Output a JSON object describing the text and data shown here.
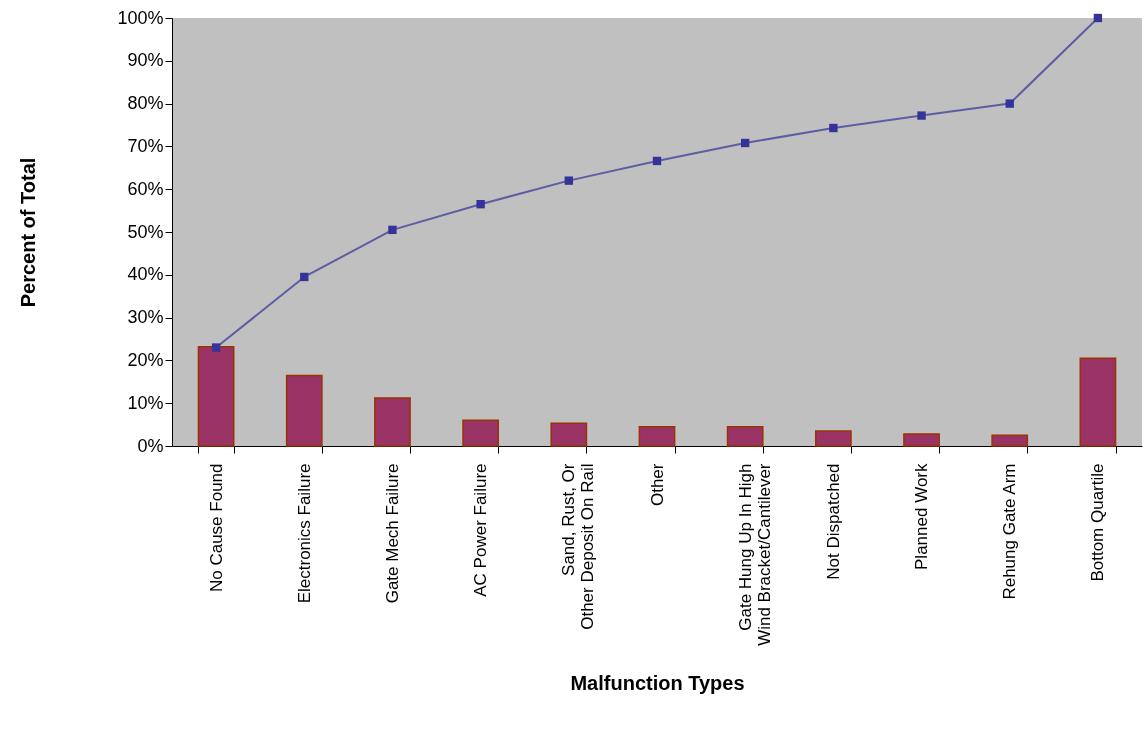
{
  "chart_data": {
    "type": "bar",
    "xlabel": "Malfunction Types",
    "ylabel": "Percent of Total",
    "categories": [
      "No Cause Found",
      "Electronics Failure",
      "Gate Mech Failure",
      "AC Power Failure",
      "Sand, Rust, Or Other Deposit On Rail",
      "Other",
      "Gate Hung Up In High Wind Bracket/Cantilever",
      "Not Dispatched",
      "Planned Work",
      "Rehung Gate Arm",
      "Bottom Quartile"
    ],
    "series": [
      {
        "color": "#993366",
        "values": [
          23.2,
          16.5,
          11.2,
          6.0,
          5.3,
          4.5,
          4.5,
          3.5,
          2.8,
          2.5,
          20.5
        ]
      },
      {
        "type": "line",
        "color": "#333399",
        "marker": "square",
        "values": [
          23.0,
          39.5,
          50.5,
          56.5,
          62.0,
          66.6,
          70.8,
          74.3,
          77.2,
          80.0,
          100
        ]
      }
    ],
    "ylim": [
      0,
      100
    ],
    "yticks": [
      {
        "value": 0,
        "label": "0%"
      },
      {
        "value": 10,
        "label": "10%"
      },
      {
        "value": 20,
        "label": "20%"
      },
      {
        "value": 30,
        "label": "30%"
      },
      {
        "value": 40,
        "label": "40%"
      },
      {
        "value": 50,
        "label": "50%"
      },
      {
        "value": 60,
        "label": "60%"
      },
      {
        "value": 70,
        "label": "70%"
      },
      {
        "value": 80,
        "label": "80%"
      },
      {
        "value": 90,
        "label": "90%"
      },
      {
        "value": 100,
        "label": "100%"
      }
    ],
    "grid": false
  }
}
